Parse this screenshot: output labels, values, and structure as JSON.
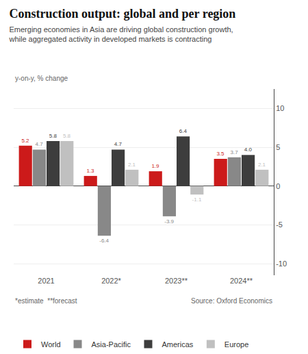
{
  "chart_data": {
    "type": "bar",
    "title": "Construction output: global and per region",
    "subtitle": "Emerging economies in Asia are driving global construction growth,\nwhile aggregated activity in developed markets is contracting",
    "ylabel": "y-on-y, % change",
    "categories": [
      "2021",
      "2022*",
      "2023**",
      "2024**"
    ],
    "series": [
      {
        "name": "World",
        "color": "#cc1a1a",
        "values": [
          5.2,
          1.3,
          1.9,
          3.5
        ]
      },
      {
        "name": "Asia-Pacific",
        "color": "#888888",
        "values": [
          4.7,
          -6.4,
          -3.9,
          3.7
        ]
      },
      {
        "name": "Americas",
        "color": "#3d3d3d",
        "values": [
          5.8,
          4.7,
          6.4,
          4.0
        ],
        "value_labels": [
          "5.8",
          "4.7",
          "6.4",
          "4.0"
        ]
      },
      {
        "name": "Europe",
        "color": "#c0c0c0",
        "values": [
          5.8,
          2.1,
          -1.1,
          2.1
        ]
      }
    ],
    "ylim": [
      -11.5,
      12.5
    ],
    "yticks": [
      -10,
      -5,
      0,
      5,
      10
    ],
    "grid": true,
    "data_labels": true,
    "legend": "bottom",
    "annotations": [
      "*estimate  **forecast",
      "Source: Oxford Economics"
    ]
  }
}
